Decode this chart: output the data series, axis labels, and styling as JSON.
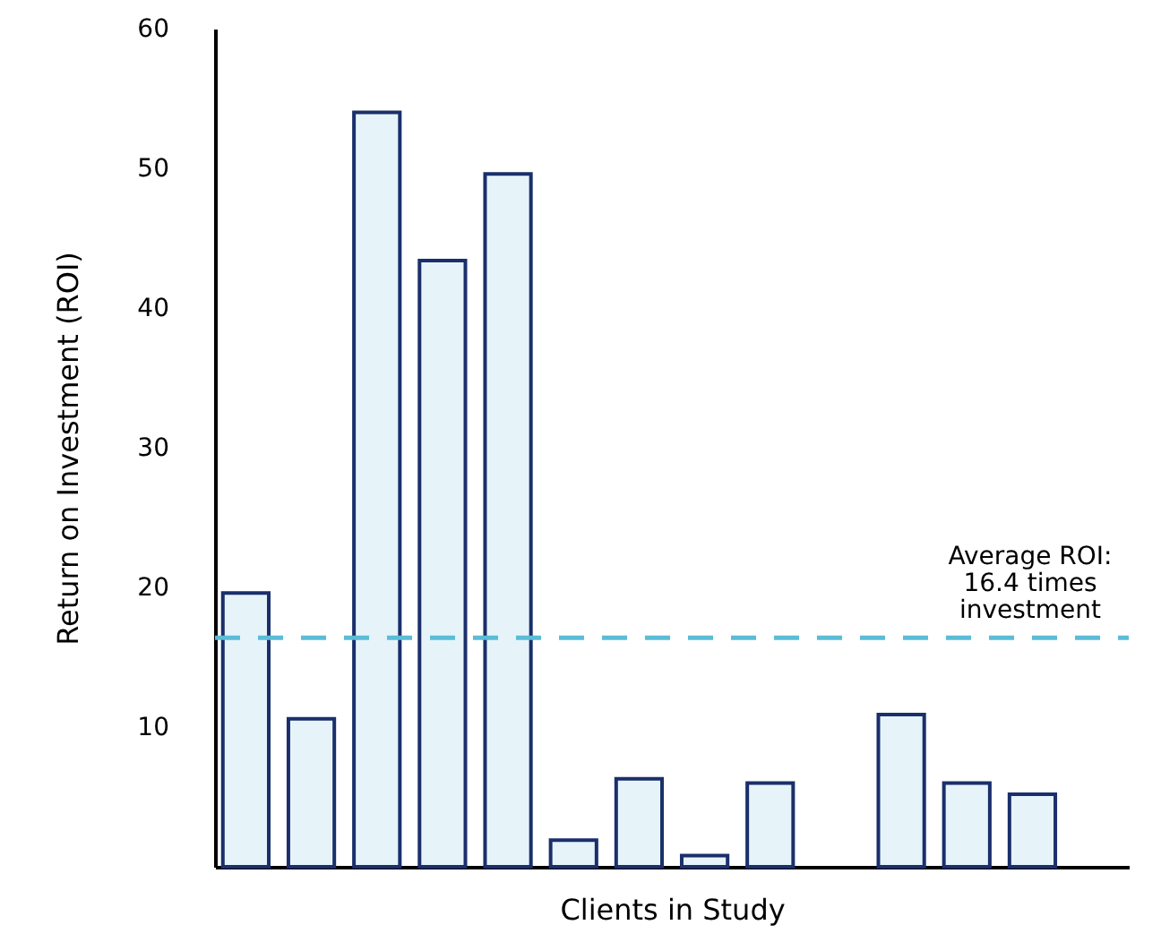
{
  "chart_data": {
    "type": "bar",
    "xlabel": "Clients in Study",
    "ylabel": "Return on Investment (ROI)",
    "categories": [
      null,
      null,
      null,
      null,
      null,
      null,
      null,
      null,
      null,
      null,
      null,
      null,
      null,
      null
    ],
    "series": [
      {
        "color": "#e6f4fa",
        "values": [
          19.6,
          10.6,
          54.0,
          43.4,
          49.6,
          1.9,
          6.3,
          0.8,
          6.0,
          null,
          10.9,
          6.0,
          5.2,
          null
        ]
      }
    ],
    "ylim": [
      0,
      60
    ],
    "yticks": [
      10,
      20,
      30,
      40,
      50,
      60
    ],
    "grid": false,
    "ref_lines": [
      {
        "axis": "y",
        "value": 16.4,
        "label": "Average ROI:\n16.4 times\ninvestment",
        "color": "#5bbcd6",
        "line_style": "dashed"
      }
    ]
  }
}
